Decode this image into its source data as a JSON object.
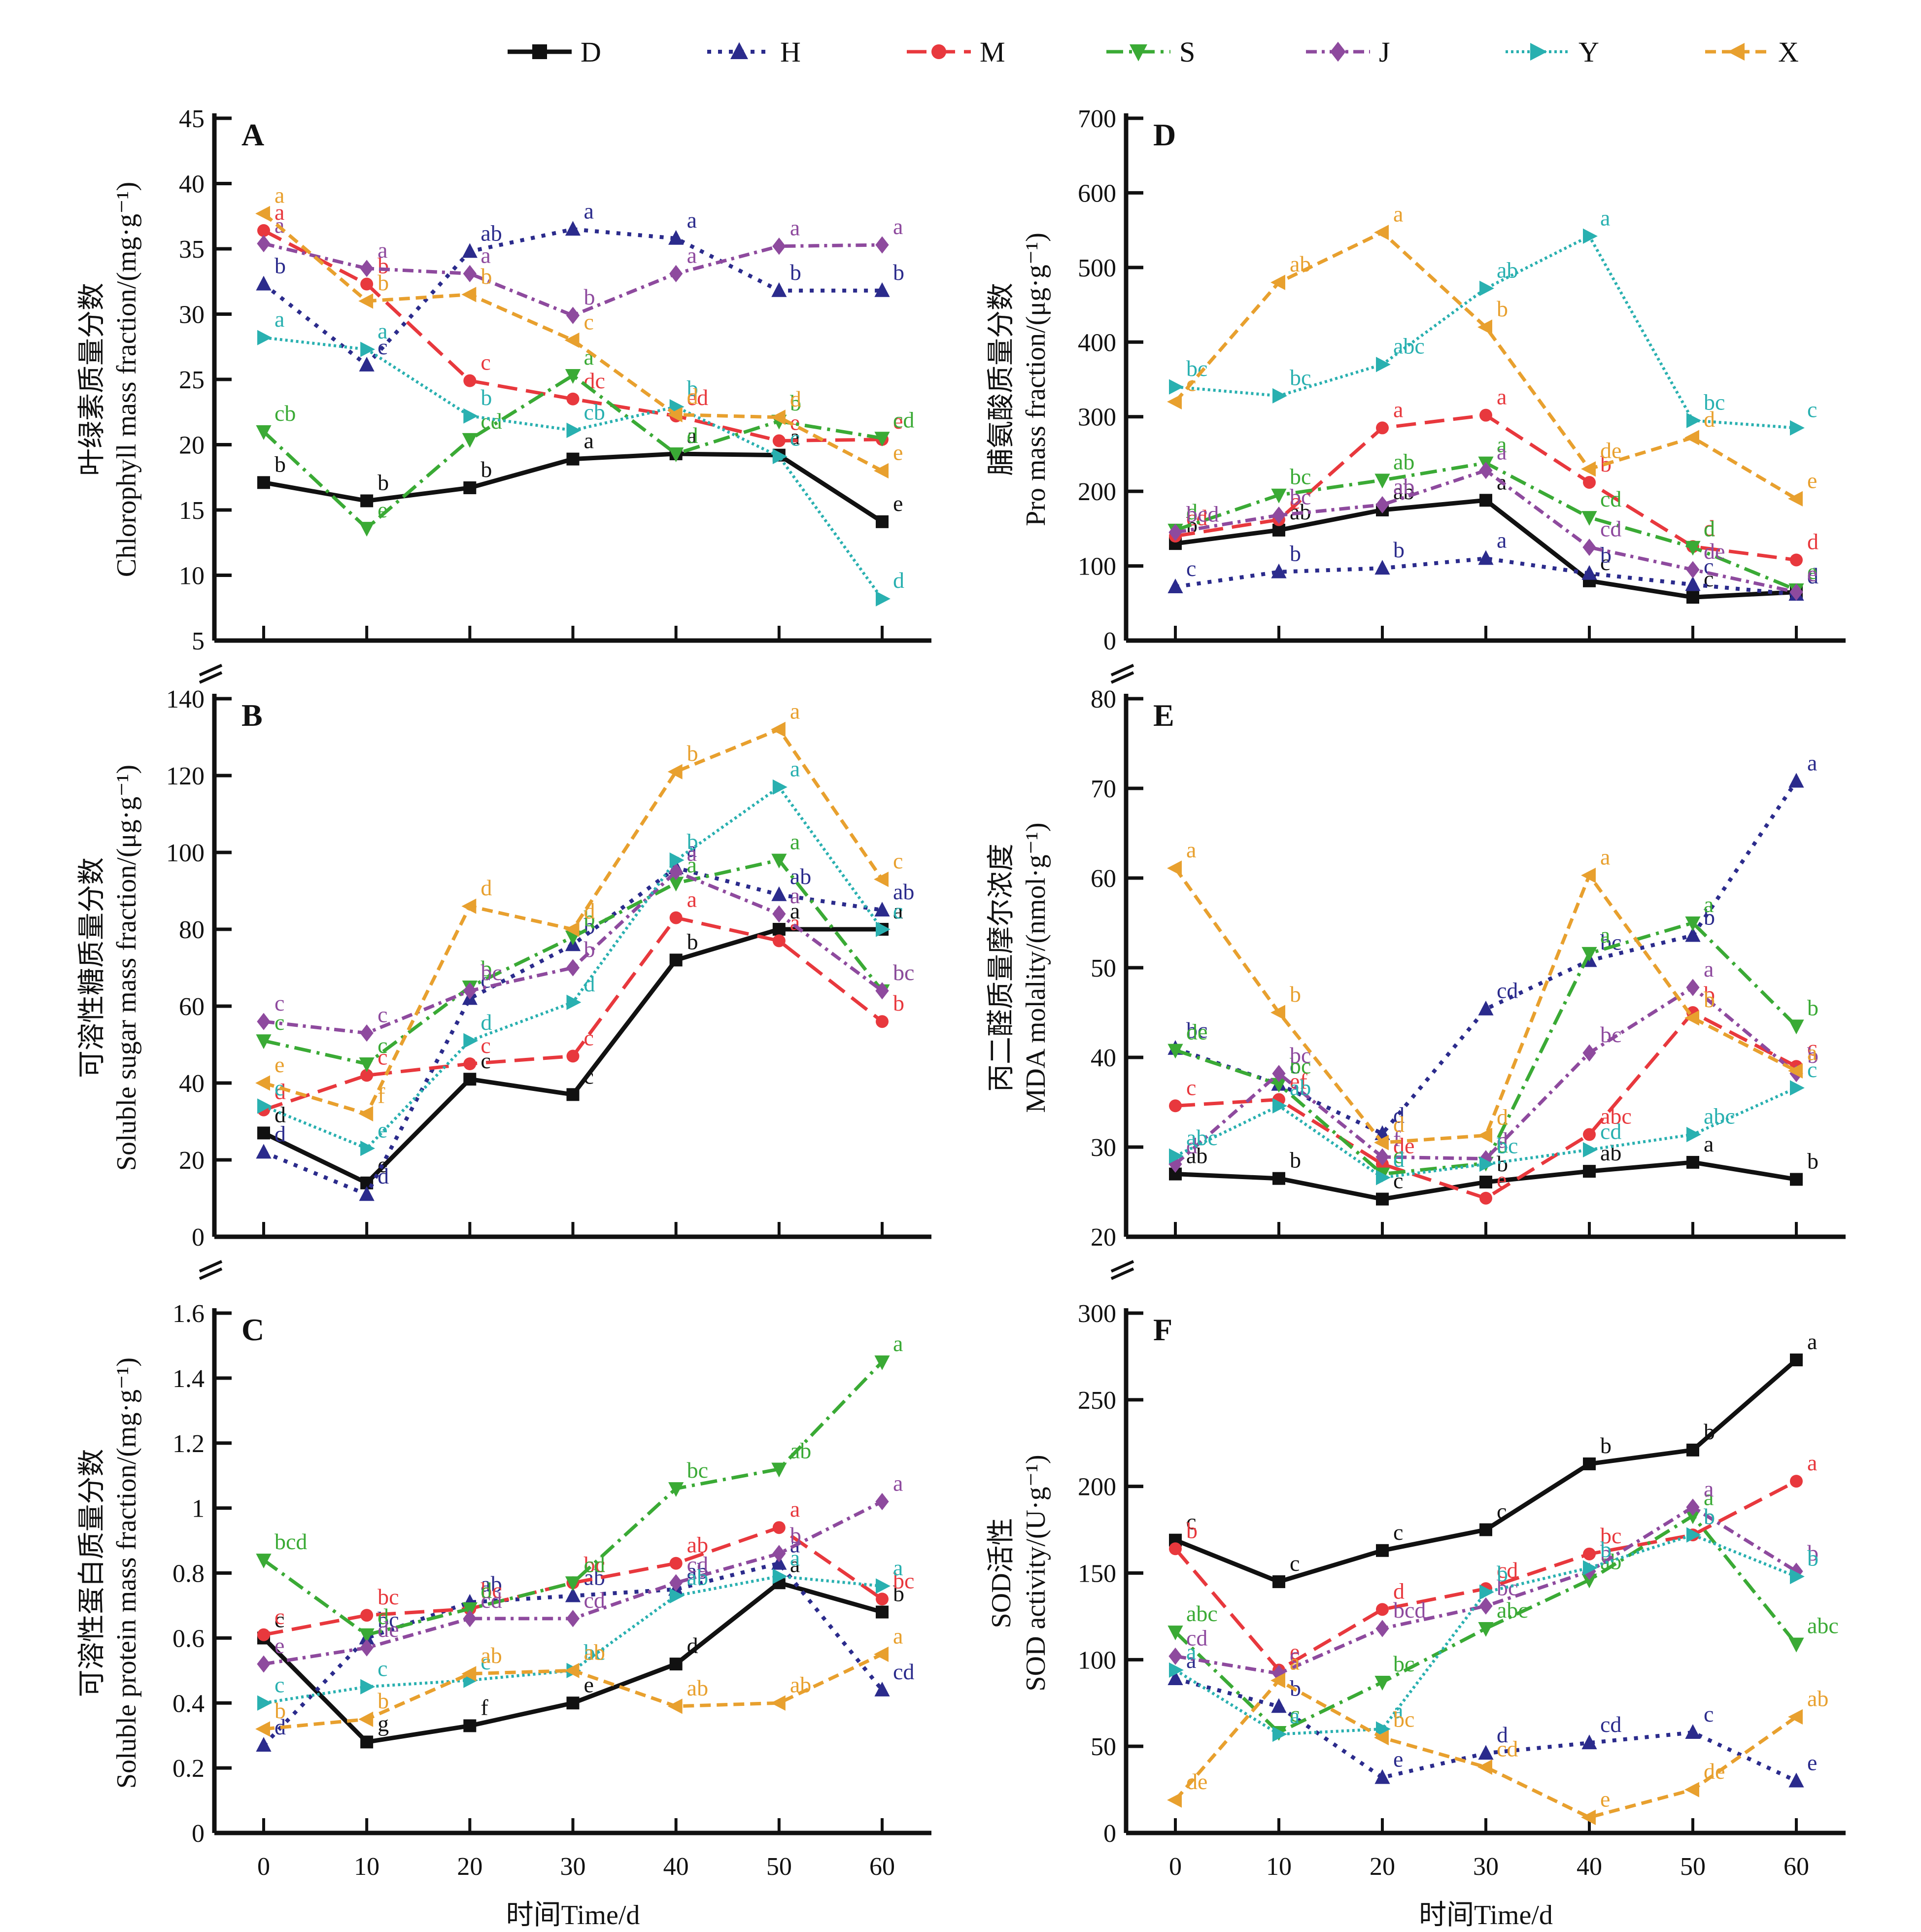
{
  "legend": [
    {
      "key": "D",
      "color": "#111111",
      "marker": "square",
      "dash": "solid"
    },
    {
      "key": "H",
      "color": "#2b2b8c",
      "marker": "triangle-up",
      "dash": "dot"
    },
    {
      "key": "M",
      "color": "#e8383d",
      "marker": "circle",
      "dash": "longdash"
    },
    {
      "key": "S",
      "color": "#3aaa35",
      "marker": "triangle-down",
      "dash": "dashdot"
    },
    {
      "key": "J",
      "color": "#8e4a9e",
      "marker": "diamond",
      "dash": "dashdot2"
    },
    {
      "key": "Y",
      "color": "#29b0b0",
      "marker": "triangle-right",
      "dash": "densedot"
    },
    {
      "key": "X",
      "color": "#e8a02e",
      "marker": "triangle-left",
      "dash": "dash"
    }
  ],
  "xaxis": {
    "title": "时间Time/d",
    "ticks": [
      0,
      10,
      20,
      30,
      40,
      50,
      60
    ]
  },
  "chart_data": [
    {
      "panel": "A",
      "type": "line",
      "ylabel_cn": "叶绿素质量分数",
      "ylabel_en": "Chlorophyll mass fraction/(mg·g⁻¹)",
      "ylim": [
        5,
        45
      ],
      "yticks": [
        5,
        10,
        15,
        20,
        25,
        30,
        35,
        40,
        45
      ],
      "x": [
        0,
        10,
        20,
        30,
        40,
        50,
        60
      ],
      "series": [
        {
          "name": "D",
          "values": [
            17.1,
            15.7,
            16.7,
            18.9,
            19.3,
            19.2,
            14.1
          ],
          "sig": [
            "b",
            "b",
            "b",
            "a",
            "a",
            "a",
            "e"
          ]
        },
        {
          "name": "H",
          "values": [
            32.3,
            26.1,
            34.8,
            36.5,
            35.8,
            31.8,
            31.8
          ],
          "sig": [
            "b",
            "c",
            "ab",
            "a",
            "a",
            "b",
            "b"
          ]
        },
        {
          "name": "M",
          "values": [
            36.4,
            32.3,
            24.9,
            23.5,
            22.2,
            20.3,
            20.4
          ],
          "sig": [
            "a",
            "b",
            "c",
            "dc",
            "ed",
            "e",
            "e"
          ]
        },
        {
          "name": "S",
          "values": [
            21.0,
            13.6,
            20.4,
            25.3,
            19.3,
            21.8,
            20.5
          ],
          "sig": [
            "cb",
            "e",
            "cd",
            "a",
            "d",
            "b",
            "cd"
          ]
        },
        {
          "name": "J",
          "values": [
            35.4,
            33.5,
            33.1,
            29.9,
            33.1,
            35.2,
            35.3
          ],
          "sig": [
            "a",
            "a",
            "a",
            "b",
            "a",
            "a",
            "a"
          ]
        },
        {
          "name": "Y",
          "values": [
            28.2,
            27.3,
            22.2,
            21.1,
            22.9,
            19.1,
            8.2
          ],
          "sig": [
            "a",
            "a",
            "b",
            "cb",
            "b",
            "c",
            "d"
          ]
        },
        {
          "name": "X",
          "values": [
            37.7,
            31.0,
            31.5,
            28.0,
            22.3,
            22.1,
            18.0
          ],
          "sig": [
            "a",
            "b",
            "b",
            "c",
            "d",
            "d",
            "e"
          ]
        }
      ]
    },
    {
      "panel": "B",
      "type": "line",
      "ylabel_cn": "可溶性糖质量分数",
      "ylabel_en": "Soluble sugar mass fraction/(μg·g⁻¹)",
      "ylim": [
        0,
        140
      ],
      "yticks": [
        0,
        20,
        40,
        60,
        80,
        100,
        120,
        140
      ],
      "x": [
        0,
        10,
        20,
        30,
        40,
        50,
        60
      ],
      "series": [
        {
          "name": "D",
          "values": [
            27,
            14,
            41,
            37,
            72,
            80,
            80
          ],
          "sig": [
            "d",
            "e",
            "c",
            "c",
            "b",
            "a",
            "a"
          ]
        },
        {
          "name": "H",
          "values": [
            22,
            11,
            62,
            76,
            96,
            89,
            85
          ],
          "sig": [
            "d",
            "d",
            "c",
            "b",
            "a",
            "ab",
            "ab"
          ]
        },
        {
          "name": "M",
          "values": [
            33,
            42,
            45,
            47,
            83,
            77,
            56
          ],
          "sig": [
            "d",
            "c",
            "c",
            "c",
            "a",
            "a",
            "b"
          ]
        },
        {
          "name": "S",
          "values": [
            51,
            45,
            65,
            78,
            92,
            98,
            64
          ],
          "sig": [
            "c",
            "c",
            "b",
            "b",
            "a",
            "a",
            "bc"
          ]
        },
        {
          "name": "J",
          "values": [
            56,
            53,
            64,
            70,
            95,
            84,
            64
          ],
          "sig": [
            "c",
            "c",
            "bc",
            "b",
            "a",
            "a",
            "bc"
          ]
        },
        {
          "name": "Y",
          "values": [
            34,
            23,
            51,
            61,
            98,
            117,
            80
          ],
          "sig": [
            "e",
            "e",
            "d",
            "d",
            "b",
            "a",
            "c"
          ]
        },
        {
          "name": "X",
          "values": [
            40,
            32,
            86,
            80,
            121,
            132,
            93
          ],
          "sig": [
            "e",
            "f",
            "d",
            "d",
            "b",
            "a",
            "c"
          ]
        }
      ]
    },
    {
      "panel": "C",
      "type": "line",
      "ylabel_cn": "可溶性蛋白质量分数",
      "ylabel_en": "Soluble protein mass fraction/(mg·g⁻¹)",
      "ylim": [
        0,
        1.6
      ],
      "yticks": [
        0,
        0.2,
        0.4,
        0.6,
        0.8,
        1.0,
        1.2,
        1.4,
        1.6
      ],
      "x": [
        0,
        10,
        20,
        30,
        40,
        50,
        60
      ],
      "series": [
        {
          "name": "D",
          "values": [
            0.6,
            0.28,
            0.33,
            0.4,
            0.52,
            0.77,
            0.68
          ],
          "sig": [
            "c",
            "g",
            "f",
            "e",
            "d",
            "a",
            "b"
          ]
        },
        {
          "name": "H",
          "values": [
            0.27,
            0.6,
            0.71,
            0.73,
            0.75,
            0.83,
            0.44
          ],
          "sig": [
            "d",
            "bc",
            "ab",
            "ab",
            "ab",
            "a",
            "cd"
          ]
        },
        {
          "name": "M",
          "values": [
            0.61,
            0.67,
            0.69,
            0.77,
            0.83,
            0.94,
            0.72
          ],
          "sig": [
            "c",
            "bc",
            "bc",
            "bc",
            "ab",
            "a",
            "bc"
          ]
        },
        {
          "name": "S",
          "values": [
            0.84,
            0.61,
            0.69,
            0.77,
            1.06,
            1.12,
            1.45
          ],
          "sig": [
            "bcd",
            "d",
            "d",
            "cd",
            "bc",
            "ab",
            "a"
          ]
        },
        {
          "name": "J",
          "values": [
            0.52,
            0.57,
            0.66,
            0.66,
            0.77,
            0.86,
            1.02
          ],
          "sig": [
            "e",
            "de",
            "cd",
            "cd",
            "cd",
            "b",
            "a"
          ]
        },
        {
          "name": "Y",
          "values": [
            0.4,
            0.45,
            0.47,
            0.5,
            0.73,
            0.79,
            0.76
          ],
          "sig": [
            "c",
            "c",
            "c",
            "bc",
            "ab",
            "a",
            "a"
          ]
        },
        {
          "name": "X",
          "values": [
            0.32,
            0.35,
            0.49,
            0.5,
            0.39,
            0.4,
            0.55
          ],
          "sig": [
            "b",
            "b",
            "ab",
            "ab",
            "ab",
            "ab",
            "a"
          ]
        }
      ]
    },
    {
      "panel": "D",
      "type": "line",
      "ylabel_cn": "脯氨酸质量分数",
      "ylabel_en": "Pro mass fraction/(μg·g⁻¹)",
      "ylim": [
        0,
        700
      ],
      "yticks": [
        0,
        100,
        200,
        300,
        400,
        500,
        600,
        700
      ],
      "x": [
        0,
        10,
        20,
        30,
        40,
        50,
        60
      ],
      "series": [
        {
          "name": "D",
          "values": [
            130,
            148,
            175,
            188,
            80,
            58,
            65
          ],
          "sig": [
            "b",
            "ab",
            "ab",
            "a",
            "c",
            "c",
            "c"
          ]
        },
        {
          "name": "H",
          "values": [
            72,
            92,
            97,
            110,
            90,
            75,
            62
          ],
          "sig": [
            "c",
            "b",
            "b",
            "a",
            "b",
            "c",
            "d"
          ]
        },
        {
          "name": "M",
          "values": [
            140,
            162,
            285,
            302,
            212,
            126,
            108
          ],
          "sig": [
            "cd",
            "c",
            "a",
            "a",
            "b",
            "d",
            "d"
          ]
        },
        {
          "name": "S",
          "values": [
            148,
            195,
            215,
            238,
            165,
            125,
            68
          ],
          "sig": [
            "d",
            "bc",
            "ab",
            "a",
            "cd",
            "d",
            "e"
          ]
        },
        {
          "name": "J",
          "values": [
            145,
            168,
            182,
            228,
            125,
            95,
            65
          ],
          "sig": [
            "bcd",
            "bc",
            "ab",
            "a",
            "cd",
            "de",
            "e"
          ]
        },
        {
          "name": "Y",
          "values": [
            340,
            328,
            370,
            472,
            542,
            295,
            285
          ],
          "sig": [
            "bc",
            "bc",
            "abc",
            "ab",
            "a",
            "bc",
            "c"
          ]
        },
        {
          "name": "X",
          "values": [
            320,
            480,
            547,
            420,
            230,
            272,
            190
          ],
          "sig": [
            "c",
            "ab",
            "a",
            "b",
            "de",
            "d",
            "e"
          ]
        }
      ]
    },
    {
      "panel": "E",
      "type": "line",
      "ylabel_cn": "丙二醛质量摩尔浓度",
      "ylabel_en": "MDA molality/(nmol·g⁻¹)",
      "ylim": [
        20,
        80
      ],
      "yticks": [
        20,
        30,
        40,
        50,
        60,
        70,
        80
      ],
      "x": [
        0,
        10,
        20,
        30,
        40,
        50,
        60
      ],
      "series": [
        {
          "name": "D",
          "values": [
            27,
            26.5,
            24.2,
            26.1,
            27.3,
            28.3,
            26.4
          ],
          "sig": [
            "ab",
            "b",
            "c",
            "b",
            "ab",
            "a",
            "b"
          ]
        },
        {
          "name": "H",
          "values": [
            41,
            37,
            31.5,
            45.4,
            50.8,
            53.6,
            70.8
          ],
          "sig": [
            "bc",
            "c",
            "d",
            "cd",
            "bc",
            "b",
            "a"
          ]
        },
        {
          "name": "M",
          "values": [
            34.6,
            35.3,
            28.1,
            24.3,
            31.4,
            45.0,
            39.0
          ],
          "sig": [
            "c",
            "ef",
            "de",
            "e",
            "abc",
            "b",
            "c"
          ]
        },
        {
          "name": "S",
          "values": [
            40.8,
            37.0,
            27.0,
            28.2,
            51.6,
            55.0,
            43.5
          ],
          "sig": [
            "de",
            "bc",
            "c",
            "d",
            "a",
            "a",
            "b"
          ]
        },
        {
          "name": "J",
          "values": [
            28.1,
            38.2,
            28.9,
            28.7,
            40.5,
            47.8,
            38.2
          ],
          "sig": [
            "d",
            "bc",
            "f",
            "d",
            "bc",
            "a",
            "b"
          ]
        },
        {
          "name": "Y",
          "values": [
            29.0,
            34.6,
            26.6,
            28.1,
            29.7,
            31.4,
            36.6
          ],
          "sig": [
            "abc",
            "ab",
            "d",
            "bc",
            "cd",
            "abc",
            "c"
          ]
        },
        {
          "name": "X",
          "values": [
            61.1,
            45.0,
            30.5,
            31.3,
            60.3,
            44.4,
            38.5
          ],
          "sig": [
            "a",
            "b",
            "d",
            "d",
            "a",
            "b",
            "a"
          ]
        }
      ]
    },
    {
      "panel": "F",
      "type": "line",
      "ylabel_cn": "SOD活性",
      "ylabel_en": "SOD activity/(U·g⁻¹)",
      "ylim": [
        0,
        300
      ],
      "yticks": [
        0,
        50,
        100,
        150,
        200,
        250,
        300
      ],
      "x": [
        0,
        10,
        20,
        30,
        40,
        50,
        60
      ],
      "series": [
        {
          "name": "D",
          "values": [
            169,
            145,
            163,
            175,
            213,
            221,
            273
          ],
          "sig": [
            "c",
            "c",
            "c",
            "c",
            "b",
            "b",
            "a"
          ]
        },
        {
          "name": "H",
          "values": [
            89,
            73,
            32,
            46,
            52,
            58,
            30
          ],
          "sig": [
            "a",
            "b",
            "e",
            "d",
            "cd",
            "c",
            "e"
          ]
        },
        {
          "name": "M",
          "values": [
            164,
            94,
            129,
            141,
            161,
            172,
            203
          ],
          "sig": [
            "b",
            "e",
            "d",
            "cd",
            "bc",
            "b",
            "a"
          ]
        },
        {
          "name": "S",
          "values": [
            116,
            58,
            87,
            118,
            146,
            183,
            109
          ],
          "sig": [
            "abc",
            "c",
            "bc",
            "abc",
            "ab",
            "a",
            "abc"
          ]
        },
        {
          "name": "J",
          "values": [
            102,
            92,
            118,
            131,
            151,
            188,
            151
          ],
          "sig": [
            "cd",
            "c",
            "bcd",
            "bc",
            "b",
            "a",
            "b"
          ]
        },
        {
          "name": "Y",
          "values": [
            94,
            57,
            60,
            139,
            153,
            172,
            148
          ],
          "sig": [
            "a",
            "a",
            "a",
            "b",
            "b",
            "b",
            "b"
          ]
        },
        {
          "name": "X",
          "values": [
            19,
            88,
            55,
            38,
            9,
            25,
            67
          ],
          "sig": [
            "de",
            "a",
            "bc",
            "cd",
            "e",
            "de",
            "ab"
          ]
        }
      ]
    }
  ]
}
